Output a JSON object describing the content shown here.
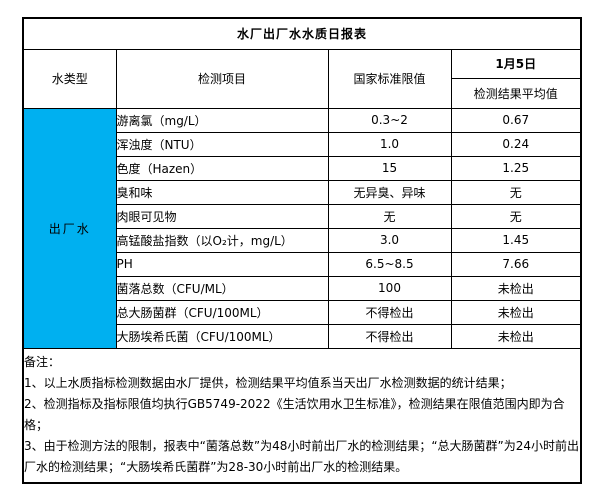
{
  "table": {
    "title": "水厂出厂水水质日报表",
    "headers": {
      "water_type": "水类型",
      "item": "检测项目",
      "standard": "国家标准限值",
      "date": "1月5日",
      "result_avg": "检测结果平均值"
    },
    "water_type_value": "出厂水",
    "rows": [
      {
        "item": "游离氯（mg/L）",
        "standard": "0.3~2",
        "result": "0.67"
      },
      {
        "item": "浑浊度（NTU）",
        "standard": "1.0",
        "result": "0.24"
      },
      {
        "item": "色度（Hazen）",
        "standard": "15",
        "result": "1.25"
      },
      {
        "item": "臭和味",
        "standard": "无异臭、异味",
        "result": "无"
      },
      {
        "item": "肉眼可见物",
        "standard": "无",
        "result": "无"
      },
      {
        "item": "高锰酸盐指数（以O₂计，mg/L）",
        "standard": "3.0",
        "result": "1.45"
      },
      {
        "item": "PH",
        "standard": "6.5~8.5",
        "result": "7.66"
      },
      {
        "item": "菌落总数（CFU/ML）",
        "standard": "100",
        "result": "未检出"
      },
      {
        "item": "总大肠菌群（CFU/100ML）",
        "standard": "不得检出",
        "result": "未检出"
      },
      {
        "item": "大肠埃希氏菌（CFU/100ML）",
        "standard": "不得检出",
        "result": "未检出"
      }
    ],
    "notes": {
      "label": "备注：",
      "lines": [
        "1、以上水质指标检测数据由水厂提供，检测结果平均值系当天出厂水检测数据的统计结果；",
        "2、检测指标及指标限值均执行GB5749-2022《生活饮用水卫生标准》，检测结果在限值范围内即为合格；",
        "3、由于检测方法的限制，报表中“菌落总数”为48小时前出厂水的检测结果；“总大肠菌群”为24小时前出厂水的检测结果；“大肠埃希氏菌群”为28-30小时前出厂水的检测结果。"
      ]
    },
    "colors": {
      "water_type_bg": "#00B0F0",
      "border": "#000000",
      "background": "#FFFFFF"
    }
  }
}
